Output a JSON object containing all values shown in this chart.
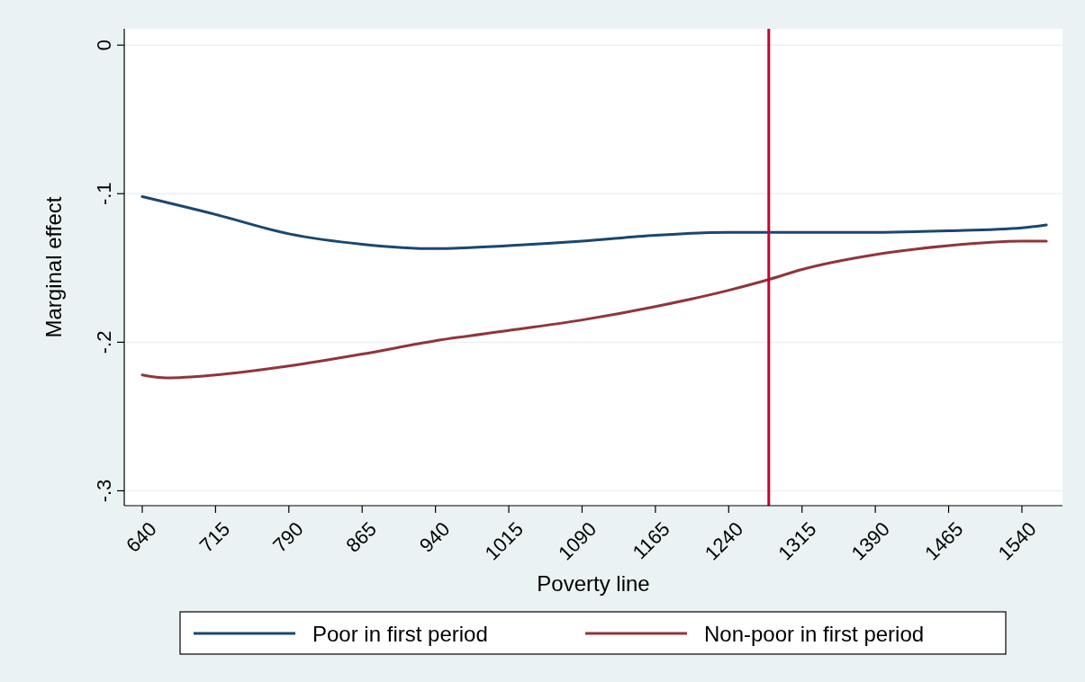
{
  "chart_data": {
    "type": "line",
    "xlabel": "Poverty line",
    "ylabel": "Marginal effect",
    "xlim": [
      621.6,
      1581.5
    ],
    "xticks": [
      640,
      715,
      790,
      865,
      940,
      1015,
      1090,
      1165,
      1240,
      1315,
      1390,
      1465,
      1540
    ],
    "ylim": [
      -0.31,
      0.011
    ],
    "yticks": [
      0,
      {
        "value": -0.1,
        "label": "-.1"
      },
      {
        "value": -0.2,
        "label": "-.2"
      },
      {
        "value": -0.3,
        "label": "-.3"
      }
    ],
    "grid": "y",
    "legend": "bottom",
    "ref_lines": [
      {
        "axis": "x",
        "value": 1281,
        "color": "#c10534"
      }
    ],
    "series": [
      {
        "name": "Poor in first period",
        "color": "#1a476f",
        "x": [
          640,
          715,
          790,
          865,
          940,
          1015,
          1090,
          1165,
          1240,
          1315,
          1390,
          1465,
          1540,
          1565
        ],
        "values": [
          -0.102,
          -0.114,
          -0.127,
          -0.134,
          -0.137,
          -0.135,
          -0.132,
          -0.128,
          -0.126,
          -0.126,
          -0.126,
          -0.125,
          -0.123,
          -0.121
        ]
      },
      {
        "name": "Non-poor in first period",
        "color": "#90353b",
        "x": [
          640,
          665,
          715,
          790,
          865,
          940,
          1015,
          1090,
          1165,
          1240,
          1280,
          1315,
          1390,
          1465,
          1540,
          1565
        ],
        "values": [
          -0.222,
          -0.224,
          -0.222,
          -0.216,
          -0.208,
          -0.199,
          -0.192,
          -0.185,
          -0.176,
          -0.165,
          -0.158,
          -0.151,
          -0.141,
          -0.135,
          -0.132,
          -0.132
        ]
      }
    ]
  }
}
